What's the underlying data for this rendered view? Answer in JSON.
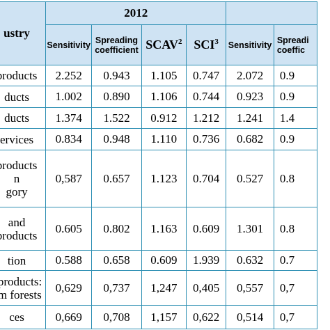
{
  "table": {
    "year_2012": "2012",
    "industry_header": "ustry",
    "columns": {
      "sensitivity": "Sensitivity",
      "spreading_line1": "Spreading",
      "spreading_line2": "coefficient",
      "scav": "SCAV",
      "scav_sup": "2",
      "sci": "SCI",
      "sci_sup": "3",
      "sensitivity_2": "Sensitivity",
      "spreading2_line1": "Spreadi",
      "spreading2_line2": "coeffic"
    },
    "rows": [
      {
        "name_lines": [
          "products"
        ],
        "v": [
          "2.252",
          "0.943",
          "1.105",
          "0.747",
          "2.072",
          "0.9"
        ]
      },
      {
        "name_lines": [
          "ducts"
        ],
        "v": [
          "1.002",
          "0.890",
          "1.106",
          "0.744",
          "0.923",
          "0.9"
        ]
      },
      {
        "name_lines": [
          "ducts"
        ],
        "v": [
          "1.374",
          "1.522",
          "0.912",
          "1.212",
          "1.241",
          "1.4"
        ]
      },
      {
        "name_lines": [
          "ervices"
        ],
        "v": [
          "0.834",
          "0.948",
          "1.110",
          "0.736",
          "0.682",
          "0.9"
        ]
      },
      {
        "name_lines": [
          "products",
          "n",
          "gory"
        ],
        "v": [
          "0,587",
          "0.657",
          "1.123",
          "0.704",
          "0.527",
          "0.8"
        ]
      },
      {
        "name_lines": [
          "and",
          "products"
        ],
        "v": [
          "0.605",
          "0.802",
          "1.163",
          "0.609",
          "1.301",
          "0.8"
        ]
      },
      {
        "name_lines": [
          "tion"
        ],
        "v": [
          "0.588",
          "0.658",
          "0.609",
          "1.939",
          "0.632",
          "0.7"
        ]
      },
      {
        "name_lines": [
          "t products:",
          "om forests"
        ],
        "v": [
          "0,629",
          "0,737",
          "1,247",
          "0,405",
          "0,557",
          "0,7"
        ]
      },
      {
        "name_lines": [
          "ces"
        ],
        "v": [
          "0,669",
          "0,708",
          "1,157",
          "0,622",
          "0,514",
          "0,7"
        ]
      }
    ]
  }
}
